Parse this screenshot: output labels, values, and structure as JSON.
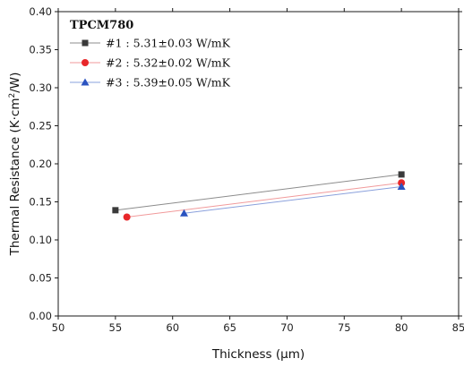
{
  "chart_data": {
    "type": "scatter",
    "xlabel": "Thickness (μm)",
    "ylabel_parts": [
      "Thermal Resistance (K·cm",
      "2",
      "/W)"
    ],
    "xlim": [
      50,
      85
    ],
    "ylim": [
      0,
      0.4
    ],
    "x_ticks": [
      "50",
      "55",
      "60",
      "65",
      "70",
      "75",
      "80",
      "85"
    ],
    "y_ticks": [
      "0.00",
      "0.05",
      "0.10",
      "0.15",
      "0.20",
      "0.25",
      "0.30",
      "0.35",
      "0.40"
    ],
    "legend_title": "TPCM780",
    "legend_position": "top-left",
    "grid": false,
    "series": [
      {
        "name": "#1 : 5.31±0.03 W/mK",
        "marker": "square",
        "color": "#3a3a3a",
        "line_color": "#8c8c8c",
        "points": [
          [
            55,
            0.139
          ],
          [
            80,
            0.186
          ]
        ]
      },
      {
        "name": "#2 : 5.32±0.02 W/mK",
        "marker": "circle",
        "color": "#e8272a",
        "line_color": "#f19a9b",
        "points": [
          [
            56,
            0.13
          ],
          [
            80,
            0.175
          ]
        ]
      },
      {
        "name": "#3 : 5.39±0.05 W/mK",
        "marker": "triangle",
        "color": "#2a53c0",
        "line_color": "#8aa0dc",
        "points": [
          [
            61,
            0.135
          ],
          [
            80,
            0.17
          ]
        ]
      }
    ]
  }
}
